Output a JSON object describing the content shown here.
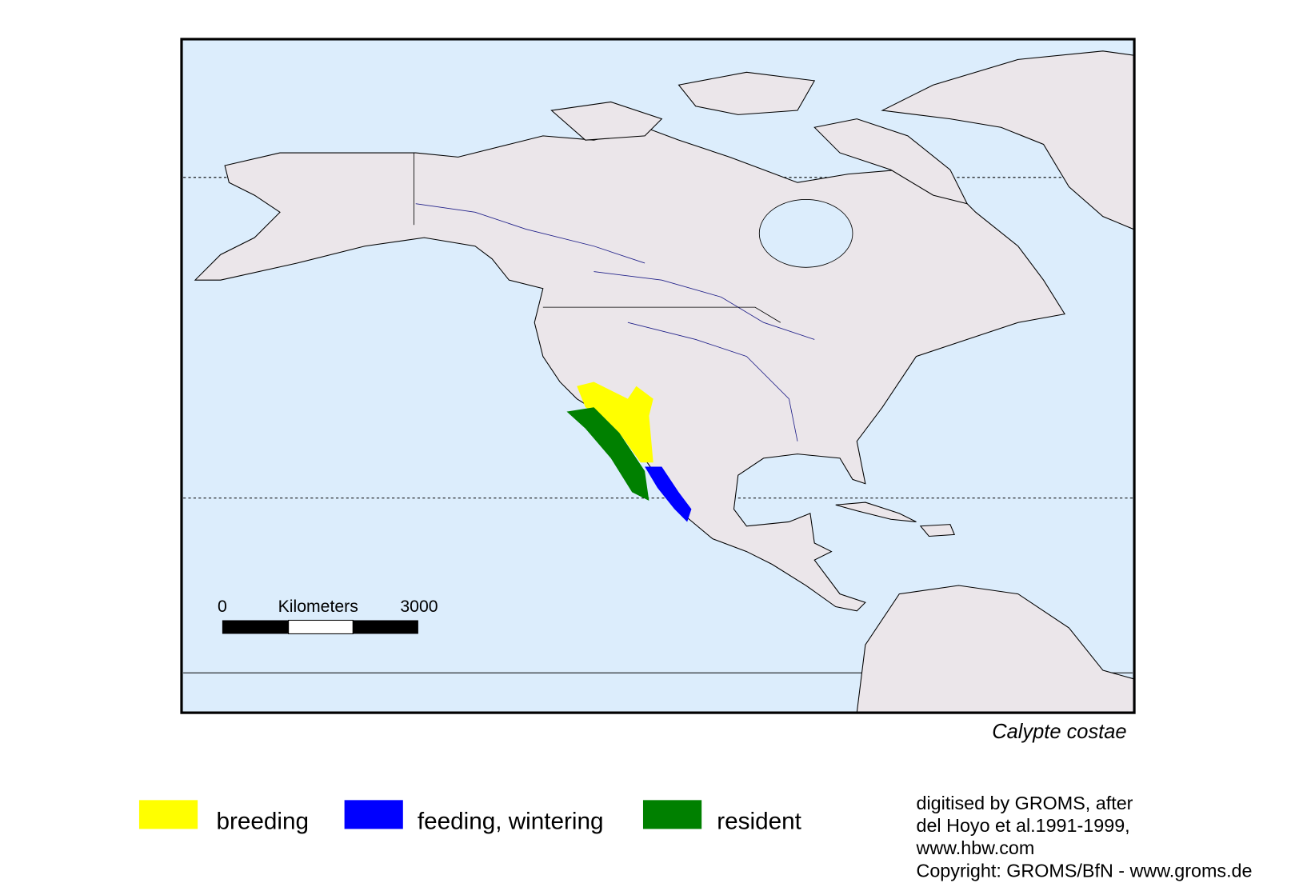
{
  "map": {
    "species": "Calypte costae",
    "scale_bar": {
      "start": "0",
      "unit": "Kilometers",
      "end": "3000"
    },
    "legend": [
      {
        "label": "breeding",
        "color": "#ffff00"
      },
      {
        "label": "feeding, wintering",
        "color": "#0000ff"
      },
      {
        "label": "resident",
        "color": "#008000"
      }
    ],
    "credits": [
      "digitised by GROMS, after",
      "del Hoyo et al.1991-1999,",
      "www.hbw.com",
      "Copyright: GROMS/BfN - www.groms.de"
    ]
  }
}
